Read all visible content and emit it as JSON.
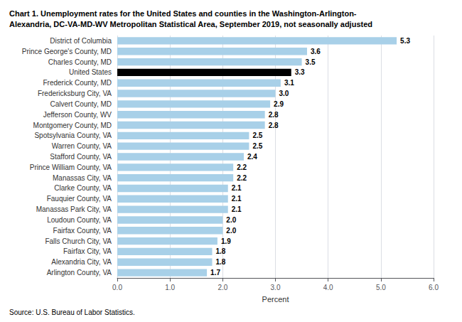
{
  "chart_data": {
    "type": "bar",
    "orientation": "horizontal",
    "title": "Chart 1. Unemployment rates for the United States and counties in the Washington-Arlington-\nAlexandria, DC-VA-MD-WV Metropolitan Statistical Area, September 2019, not seasonally adjusted",
    "source": "Source: U.S. Bureau of Labor Statistics.",
    "xlabel": "Percent",
    "categories": [
      "Arlington County, VA",
      "Alexandria City, VA",
      "Fairfax City, VA",
      "Falls Church City, VA",
      "Fairfax County, VA",
      "Loudoun County, VA",
      "Manassas Park City, VA",
      "Fauquier County, VA",
      "Clarke County, VA",
      "Manassas City, VA",
      "Prince William County, VA",
      "Stafford County, VA",
      "Warren County, VA",
      "Spotsylvania County, VA",
      "Montgomery County, MD",
      "Jefferson County, WV",
      "Calvert County, MD",
      "Fredericksburg City, VA",
      "Frederick County, MD",
      "United States",
      "Charles County, MD",
      "Prince George's County, MD",
      "District of Columbia"
    ],
    "values": [
      1.7,
      1.8,
      1.8,
      1.9,
      2.0,
      2.0,
      2.1,
      2.1,
      2.1,
      2.2,
      2.2,
      2.4,
      2.5,
      2.5,
      2.8,
      2.8,
      2.9,
      3.0,
      3.1,
      3.3,
      3.5,
      3.6,
      5.3
    ],
    "value_labels": [
      "1.7",
      "1.8",
      "1.8",
      "1.9",
      "2.0",
      "2.0",
      "2.1",
      "2.1",
      "2.1",
      "2.2",
      "2.2",
      "2.4",
      "2.5",
      "2.5",
      "2.8",
      "2.8",
      "2.9",
      "3.0",
      "3.1",
      "3.3",
      "3.5",
      "3.6",
      "5.3"
    ],
    "colors": [
      "#a8d0e8",
      "#a8d0e8",
      "#a8d0e8",
      "#a8d0e8",
      "#a8d0e8",
      "#a8d0e8",
      "#a8d0e8",
      "#a8d0e8",
      "#a8d0e8",
      "#a8d0e8",
      "#a8d0e8",
      "#a8d0e8",
      "#a8d0e8",
      "#a8d0e8",
      "#a8d0e8",
      "#a8d0e8",
      "#a8d0e8",
      "#a8d0e8",
      "#a8d0e8",
      "#000000",
      "#a8d0e8",
      "#a8d0e8",
      "#a8d0e8"
    ],
    "xlim": [
      0,
      6.0
    ],
    "xticks": [
      {
        "value": 0.0,
        "label": "0.0"
      },
      {
        "value": 1.0,
        "label": "1.0"
      },
      {
        "value": 2.0,
        "label": "2.0"
      },
      {
        "value": 3.0,
        "label": "3.0"
      },
      {
        "value": 4.0,
        "label": "4.0"
      },
      {
        "value": 5.0,
        "label": "5.0"
      },
      {
        "value": 6.0,
        "label": "6.0"
      }
    ],
    "grid": true,
    "data_labels": true
  }
}
